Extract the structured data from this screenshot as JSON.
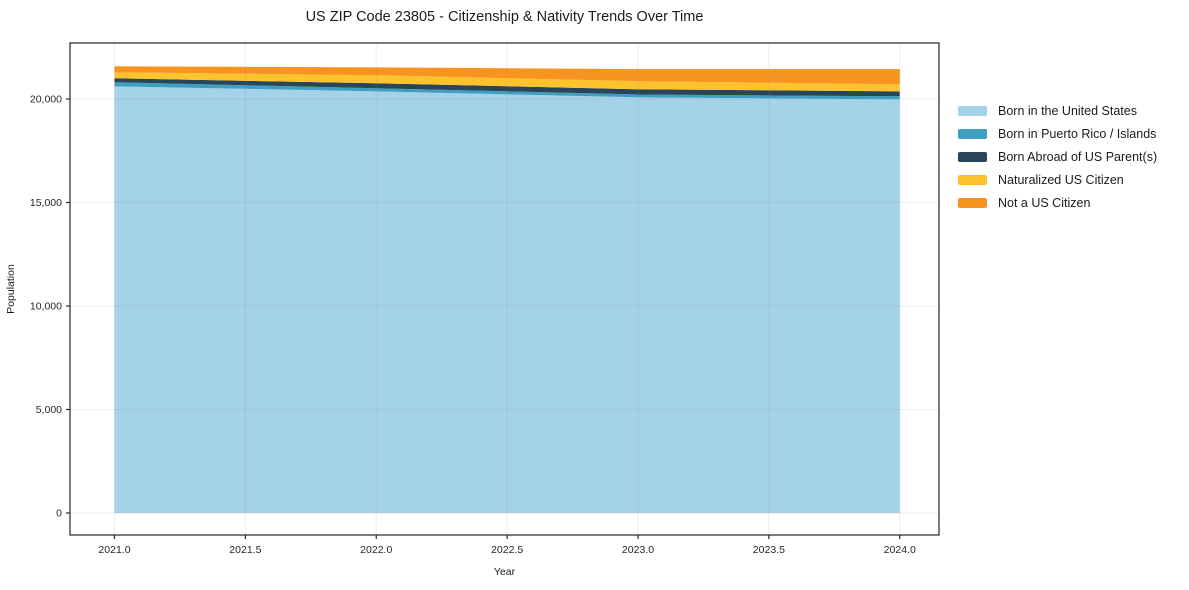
{
  "chart_data": {
    "type": "area",
    "stacked": true,
    "title": "US ZIP Code 23805 - Citizenship & Nativity Trends Over Time",
    "xlabel": "Year",
    "ylabel": "Population",
    "x": [
      2021,
      2022,
      2023,
      2024
    ],
    "series": [
      {
        "name": "Born in the United States",
        "color": "#a3d2e9",
        "values": [
          20610,
          20370,
          20080,
          19980
        ]
      },
      {
        "name": "Born in Puerto Rico / Islands",
        "color": "#3f9fc1",
        "values": [
          200,
          150,
          140,
          150
        ]
      },
      {
        "name": "Born Abroad of US Parent(s)",
        "color": "#28455a",
        "values": [
          190,
          240,
          250,
          240
        ]
      },
      {
        "name": "Naturalized US Citizen",
        "color": "#fcc32d",
        "values": [
          290,
          390,
          390,
          340
        ]
      },
      {
        "name": "Not a US Citizen",
        "color": "#f79420",
        "values": [
          290,
          380,
          580,
          730
        ]
      }
    ],
    "xticks": [
      2021.0,
      2021.5,
      2022.0,
      2022.5,
      2023.0,
      2023.5,
      2024.0
    ],
    "xtick_labels": [
      "2021.0",
      "2021.5",
      "2022.0",
      "2022.5",
      "2023.0",
      "2023.5",
      "2024.0"
    ],
    "yticks": [
      0,
      5000,
      10000,
      15000,
      20000
    ],
    "ytick_labels": [
      "0",
      "5,000",
      "10,000",
      "15,000",
      "20,000"
    ],
    "xlim": [
      2020.83,
      2024.15
    ],
    "ylim": [
      -1063,
      22705
    ],
    "grid": true,
    "legend_position": "right-outside",
    "axis_color": "#262626",
    "grid_color": "#8c8c8c",
    "background_color": "#ffffff"
  }
}
